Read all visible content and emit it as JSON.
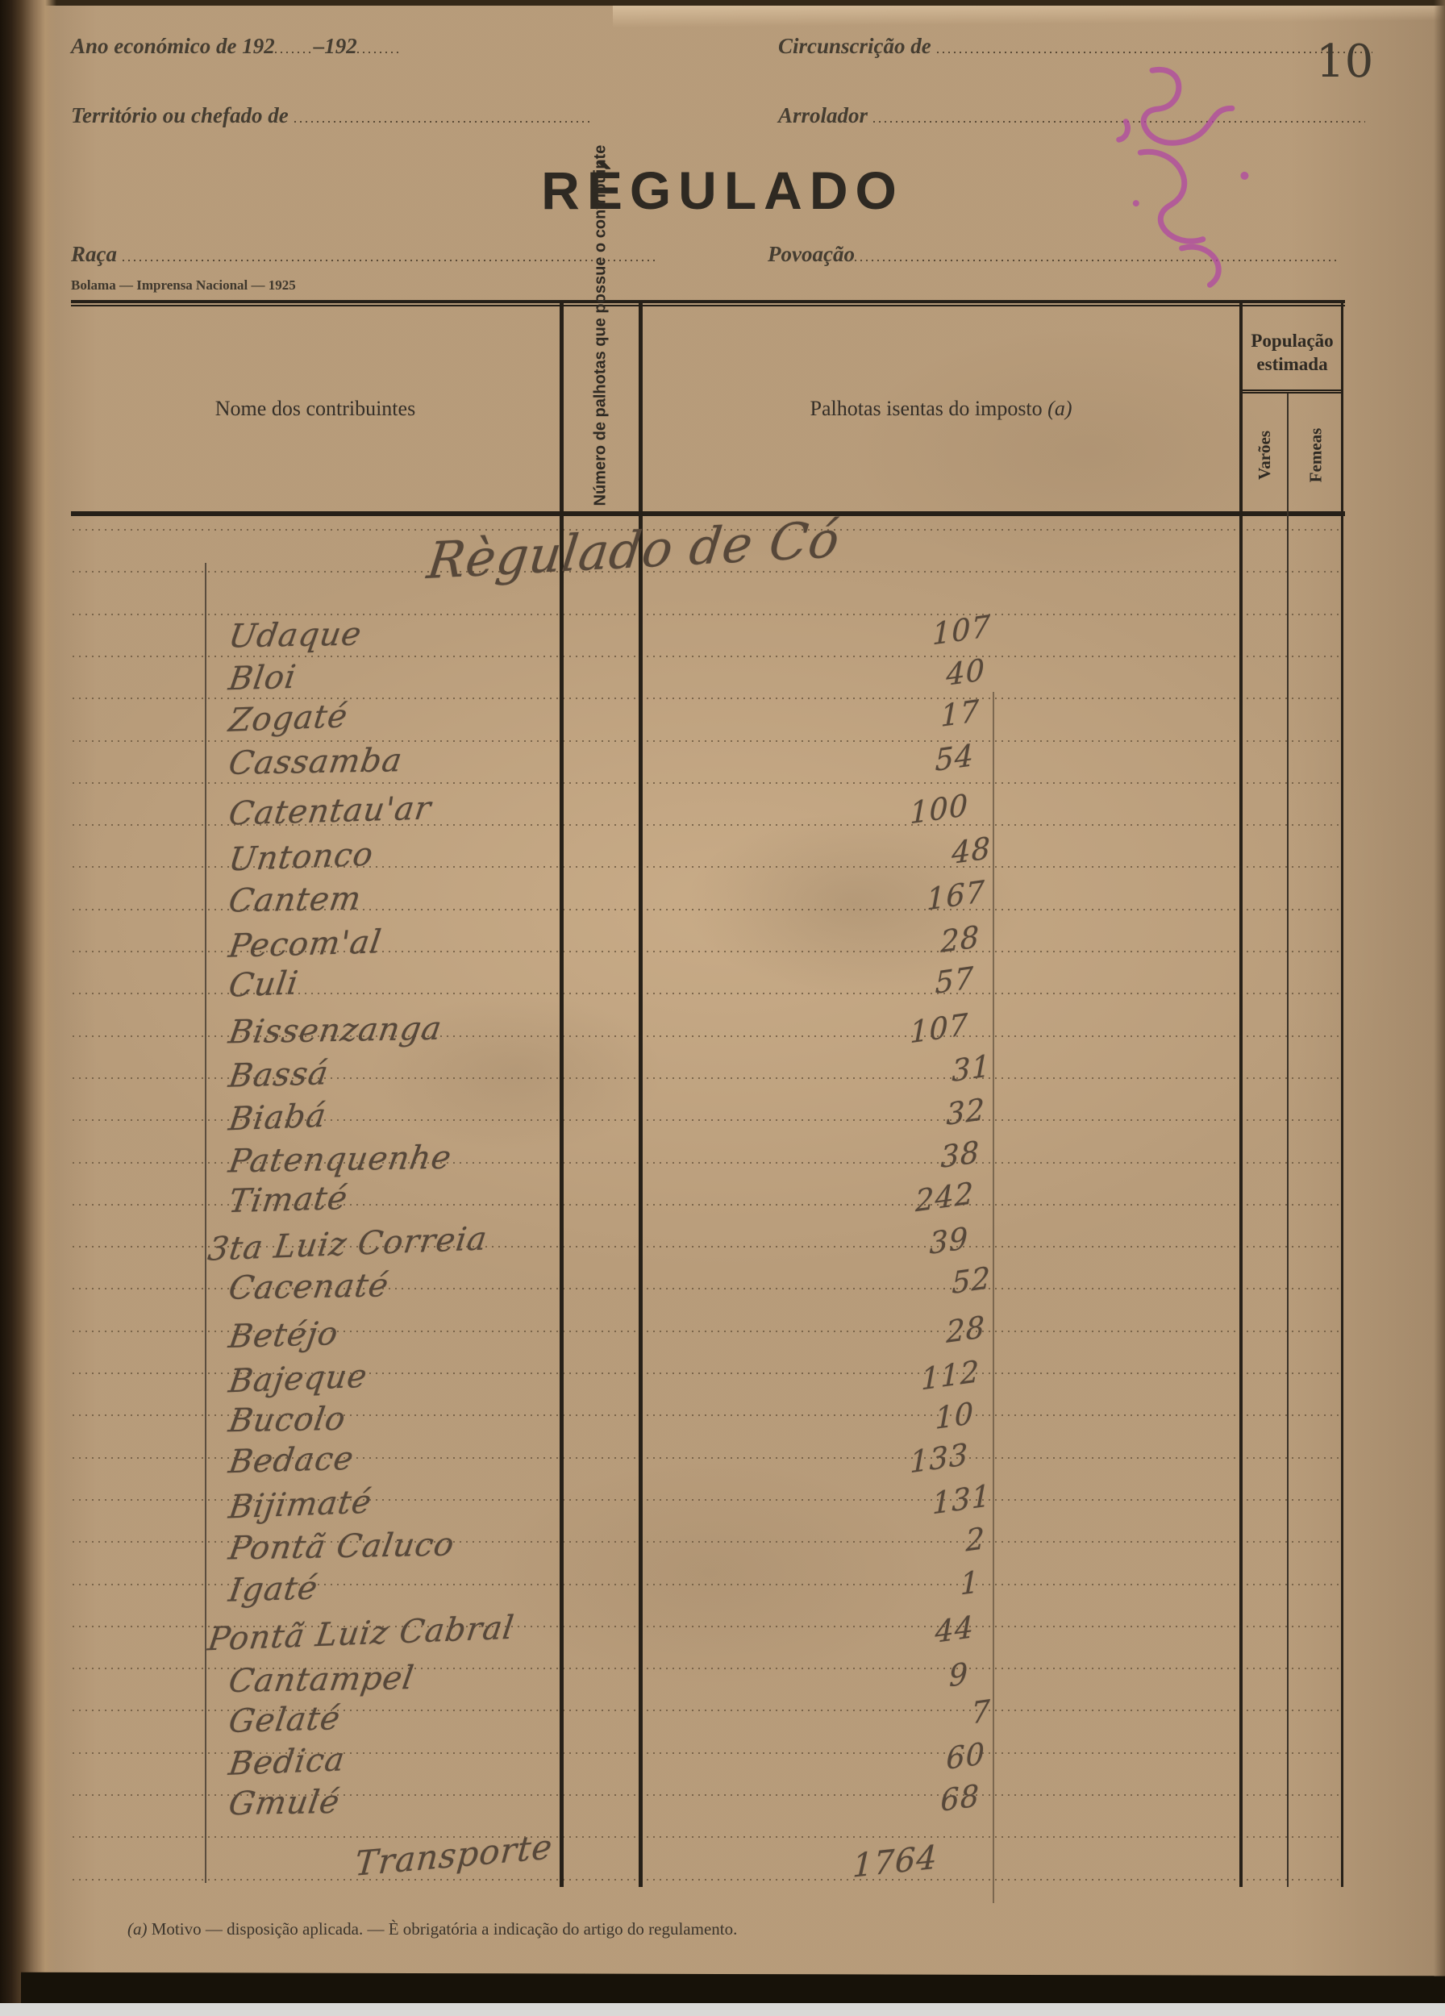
{
  "page_number": "10",
  "header": {
    "ano_label": "Ano económico de 192",
    "ano_dash": "–192",
    "circunscricao_label": "Circunscrição de",
    "territorio_label": "Território ou chefado de",
    "arrolador_label": "Arrolador",
    "title": "RÈGULADO",
    "raca_label": "Raça",
    "povoacao_label": "Povoação",
    "imprint": "Bolama — Imprensa Nacional — 1925"
  },
  "table_headers": {
    "nome": "Nome dos contribuintes",
    "numero_palhotas_lines": "Número de palhotas que possue o contribuinte",
    "palhotas_isentas": "Palhotas isentas do imposto",
    "palhotas_isentas_note": "(a)",
    "populacao_line1": "População",
    "populacao_line2": "estimada",
    "varoes": "Varões",
    "femeas": "Femeas"
  },
  "handwritten": {
    "section_title": "Règulado de Có",
    "entries": [
      {
        "name": "Udaque",
        "value": "107"
      },
      {
        "name": "Bloi",
        "value": "40"
      },
      {
        "name": "Zogaté",
        "value": "17"
      },
      {
        "name": "Cassamba",
        "value": "54"
      },
      {
        "name": "Catentau'ar",
        "value": "100"
      },
      {
        "name": "Untonco",
        "value": "48"
      },
      {
        "name": "Cantem",
        "value": "167"
      },
      {
        "name": "Pecom'al",
        "value": "28"
      },
      {
        "name": "Culi",
        "value": "57"
      },
      {
        "name": "Bissenzanga",
        "value": "107"
      },
      {
        "name": "Bassá",
        "value": "31"
      },
      {
        "name": "Biabá",
        "value": "32"
      },
      {
        "name": "Patenquenhe",
        "value": "38"
      },
      {
        "name": "Timaté",
        "value": "242"
      },
      {
        "name": "3ta Luiz Correia",
        "value": "39"
      },
      {
        "name": "Cacenaté",
        "value": "52"
      },
      {
        "name": "Betéjo",
        "value": "28"
      },
      {
        "name": "Bajeque",
        "value": "112"
      },
      {
        "name": "Bucolo",
        "value": "10"
      },
      {
        "name": "Bedace",
        "value": "133"
      },
      {
        "name": "Bijimaté",
        "value": "131"
      },
      {
        "name": "Pontã Caluco",
        "value": "2"
      },
      {
        "name": "Igaté",
        "value": "1"
      },
      {
        "name": "Pontã Luiz Cabral",
        "value": "44"
      },
      {
        "name": "Cantampel",
        "value": "9"
      },
      {
        "name": "Gelaté",
        "value": "7"
      },
      {
        "name": "Bedica",
        "value": "60"
      },
      {
        "name": "Gmulé",
        "value": "68"
      }
    ],
    "transporte_label": "Transporte",
    "transporte_value": "1764"
  },
  "footnote_marker": "(a)",
  "footnote_text": " Motivo — disposição aplicada. — È obrigatória a indicação do artigo do regulamento.",
  "stamp_color": "#b145a4"
}
